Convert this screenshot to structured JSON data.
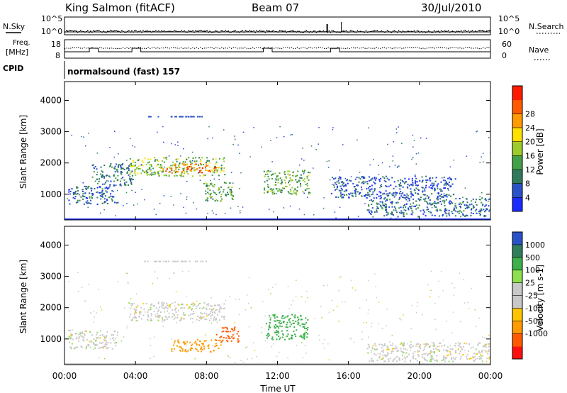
{
  "header": {
    "station": "King Salmon (fitACF)",
    "beam": "Beam 07",
    "date": "30/Jul/2010"
  },
  "strip_labels": {
    "nsky": "N.Sky",
    "freq_line1": "Freq.",
    "freq_line2": "[MHz]",
    "cpid": "CPID",
    "nsearch": "N.Search",
    "nave": "Nave"
  },
  "strip_ticks": {
    "nsky_top": "10^5",
    "nsky_bottom": "10^0",
    "freq_top": "18",
    "freq_bottom": "8",
    "nave_top": "60",
    "nave_bottom": "0"
  },
  "cpid_text": "normalsound (fast) 157",
  "xaxis": {
    "label": "Time UT",
    "ticks": [
      "00:00",
      "04:00",
      "08:00",
      "12:00",
      "16:00",
      "20:00",
      "00:00"
    ]
  },
  "colors": {
    "power_scale": [
      "#1a2bff",
      "#2a52c8",
      "#2e7a5a",
      "#43a047",
      "#9ccc2b",
      "#ffe000",
      "#ff9a00",
      "#ff5a00",
      "#ff1a00"
    ],
    "velocity_scale": [
      "#ff1010",
      "#ff5a00",
      "#ff9a00",
      "#ffc400",
      "#c8c8c8",
      "#c8c8c8",
      "#8ee050",
      "#3cb04a",
      "#2f7d5a",
      "#2a52c8"
    ]
  },
  "chart_data": [
    {
      "type": "heatmap",
      "title": "Power",
      "xlabel": "Time UT",
      "ylabel": "Slant Range [km]",
      "xlim": [
        0,
        24
      ],
      "ylim": [
        180,
        4600
      ],
      "yticks": [
        "1000",
        "2000",
        "3000",
        "4000"
      ],
      "colorbar": {
        "label": "Power [dB]",
        "ticks": [
          "4",
          "8",
          "12",
          "16",
          "20",
          "24",
          "28"
        ],
        "range": [
          0,
          30
        ]
      },
      "regions": [
        {
          "t0": 0.2,
          "t1": 3.0,
          "r0": 700,
          "r1": 1300,
          "value": 6
        },
        {
          "t0": 1.5,
          "t1": 3.8,
          "r0": 1300,
          "r1": 2000,
          "value": 8
        },
        {
          "t0": 3.6,
          "t1": 9.0,
          "r0": 1600,
          "r1": 2200,
          "value": 14
        },
        {
          "t0": 5.5,
          "t1": 8.5,
          "r0": 1700,
          "r1": 2000,
          "value": 24
        },
        {
          "t0": 7.8,
          "t1": 9.5,
          "r0": 800,
          "r1": 1400,
          "value": 12
        },
        {
          "t0": 11.2,
          "t1": 13.8,
          "r0": 1000,
          "r1": 1800,
          "value": 12
        },
        {
          "t0": 15.0,
          "t1": 22.0,
          "r0": 900,
          "r1": 1600,
          "value": 5
        },
        {
          "t0": 17.0,
          "t1": 24.0,
          "r0": 300,
          "r1": 900,
          "value": 7
        }
      ]
    },
    {
      "type": "heatmap",
      "title": "Velocity",
      "xlabel": "Time UT",
      "ylabel": "Slant Range [km]",
      "xlim": [
        0,
        24
      ],
      "ylim": [
        180,
        4600
      ],
      "yticks": [
        "1000",
        "2000",
        "3000",
        "4000"
      ],
      "colorbar": {
        "label": "Velocity [m s-1]",
        "ticks": [
          "1000",
          "500",
          "100",
          "25",
          "-25",
          "-100",
          "-500",
          "-1000"
        ],
        "range": [
          -1000,
          1000
        ]
      },
      "regions": [
        {
          "t0": 0.2,
          "t1": 3.0,
          "r0": 700,
          "r1": 1300,
          "value": 0
        },
        {
          "t0": 3.6,
          "t1": 9.0,
          "r0": 1600,
          "r1": 2200,
          "value": 0
        },
        {
          "t0": 6.0,
          "t1": 8.8,
          "r0": 600,
          "r1": 1000,
          "value": -300
        },
        {
          "t0": 8.5,
          "t1": 9.8,
          "r0": 900,
          "r1": 1400,
          "value": -600
        },
        {
          "t0": 11.3,
          "t1": 13.8,
          "r0": 1000,
          "r1": 1800,
          "value": 150
        },
        {
          "t0": 17.0,
          "t1": 24.0,
          "r0": 300,
          "r1": 900,
          "value": 0
        }
      ]
    }
  ]
}
